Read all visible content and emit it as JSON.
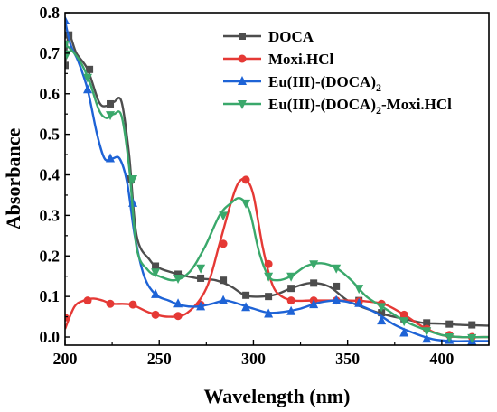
{
  "chart_data": {
    "type": "line",
    "xlabel": "Wavelength (nm)",
    "ylabel": "Absorbance",
    "xlim": [
      200,
      425
    ],
    "ylim": [
      -0.02,
      0.8
    ],
    "xticks": [
      200,
      250,
      300,
      350,
      400
    ],
    "yticks": [
      0.0,
      0.1,
      0.2,
      0.3,
      0.4,
      0.5,
      0.6,
      0.7,
      0.8
    ],
    "grid": false,
    "legend_position": "top-right",
    "series": [
      {
        "name": "DOCA",
        "legend_main": "DOCA",
        "legend_sub": "",
        "legend_tail": "",
        "color": "#4d4d4d",
        "marker": "square",
        "x": [
          200,
          202,
          206,
          212,
          218,
          222,
          226,
          230,
          234,
          238,
          245,
          250,
          260,
          270,
          280,
          288,
          296,
          305,
          312,
          320,
          330,
          340,
          350,
          360,
          370,
          380,
          390,
          400,
          410,
          425
        ],
        "y": [
          0.67,
          0.745,
          0.7,
          0.66,
          0.58,
          0.57,
          0.58,
          0.58,
          0.45,
          0.25,
          0.19,
          0.17,
          0.155,
          0.145,
          0.14,
          0.125,
          0.102,
          0.1,
          0.105,
          0.12,
          0.133,
          0.125,
          0.09,
          0.07,
          0.055,
          0.045,
          0.035,
          0.033,
          0.03,
          0.028
        ],
        "markers_x": [
          200,
          202,
          213,
          224,
          235,
          248,
          260,
          272,
          284,
          296,
          308,
          320,
          332,
          344,
          356,
          368,
          380,
          392,
          404,
          416
        ],
        "markers_y": [
          0.67,
          0.745,
          0.66,
          0.575,
          0.39,
          0.175,
          0.155,
          0.145,
          0.14,
          0.103,
          0.1,
          0.12,
          0.133,
          0.125,
          0.09,
          0.06,
          0.045,
          0.035,
          0.032,
          0.03
        ]
      },
      {
        "name": "Moxi.HCl",
        "legend_main": "Moxi.HCl",
        "legend_sub": "",
        "legend_tail": "",
        "color": "#e53935",
        "marker": "circle",
        "x": [
          200,
          205,
          210,
          215,
          220,
          225,
          235,
          245,
          255,
          265,
          275,
          282,
          288,
          292,
          296,
          300,
          305,
          310,
          315,
          322,
          330,
          340,
          350,
          360,
          370,
          380,
          390,
          400,
          410,
          425
        ],
        "y": [
          0.02,
          0.075,
          0.09,
          0.095,
          0.09,
          0.082,
          0.08,
          0.06,
          0.05,
          0.06,
          0.12,
          0.23,
          0.33,
          0.38,
          0.388,
          0.35,
          0.22,
          0.13,
          0.1,
          0.09,
          0.09,
          0.09,
          0.09,
          0.088,
          0.08,
          0.055,
          0.025,
          0.005,
          0.0,
          0.0
        ],
        "markers_x": [
          200,
          212,
          224,
          236,
          248,
          260,
          272,
          284,
          296,
          308,
          320,
          332,
          344,
          356,
          368,
          380,
          392,
          404,
          416
        ],
        "markers_y": [
          0.048,
          0.09,
          0.082,
          0.08,
          0.055,
          0.052,
          0.08,
          0.23,
          0.388,
          0.18,
          0.09,
          0.09,
          0.09,
          0.088,
          0.082,
          0.055,
          0.02,
          0.005,
          0.0
        ]
      },
      {
        "name": "Eu(III)-(DOCA)2",
        "legend_main": "Eu(III)-(DOCA)",
        "legend_sub": "2",
        "legend_tail": "",
        "color": "#1e63d6",
        "marker": "triangle-up",
        "x": [
          200,
          203,
          207,
          212,
          217,
          221,
          225,
          229,
          233,
          237,
          242,
          248,
          255,
          262,
          270,
          278,
          285,
          292,
          300,
          308,
          316,
          325,
          335,
          345,
          355,
          365,
          375,
          385,
          395,
          405,
          415,
          425
        ],
        "y": [
          0.78,
          0.72,
          0.68,
          0.61,
          0.5,
          0.44,
          0.44,
          0.44,
          0.38,
          0.25,
          0.15,
          0.105,
          0.09,
          0.078,
          0.075,
          0.082,
          0.09,
          0.082,
          0.07,
          0.06,
          0.062,
          0.07,
          0.085,
          0.09,
          0.08,
          0.06,
          0.03,
          0.01,
          -0.005,
          -0.01,
          -0.01,
          -0.01
        ],
        "markers_x": [
          200,
          212,
          224,
          236,
          248,
          260,
          272,
          284,
          296,
          308,
          320,
          332,
          344,
          356,
          368,
          380,
          392,
          404,
          416
        ],
        "markers_y": [
          0.78,
          0.61,
          0.44,
          0.33,
          0.105,
          0.082,
          0.075,
          0.09,
          0.073,
          0.057,
          0.063,
          0.08,
          0.09,
          0.083,
          0.04,
          0.01,
          -0.005,
          -0.008,
          -0.01
        ]
      },
      {
        "name": "Eu(III)-(DOCA)2-Moxi.HCl",
        "legend_main": "Eu(III)-(DOCA)",
        "legend_sub": "2",
        "legend_tail": "-Moxi.HCl",
        "color": "#3aa86b",
        "marker": "triangle-down",
        "x": [
          200,
          203,
          208,
          213,
          218,
          222,
          226,
          230,
          234,
          238,
          244,
          250,
          258,
          266,
          274,
          282,
          288,
          293,
          298,
          303,
          308,
          313,
          320,
          328,
          336,
          344,
          352,
          360,
          370,
          380,
          390,
          400,
          410,
          425
        ],
        "y": [
          0.72,
          0.71,
          0.68,
          0.63,
          0.56,
          0.54,
          0.55,
          0.545,
          0.42,
          0.22,
          0.165,
          0.15,
          0.14,
          0.16,
          0.22,
          0.3,
          0.33,
          0.342,
          0.31,
          0.21,
          0.15,
          0.14,
          0.15,
          0.175,
          0.182,
          0.17,
          0.14,
          0.1,
          0.07,
          0.04,
          0.02,
          0.005,
          0.0,
          0.0
        ],
        "markers_x": [
          200,
          201,
          212,
          224,
          236,
          248,
          260,
          272,
          284,
          296,
          308,
          320,
          332,
          344,
          356,
          368,
          380,
          392,
          404,
          416
        ],
        "markers_y": [
          0.722,
          0.698,
          0.64,
          0.548,
          0.39,
          0.16,
          0.145,
          0.17,
          0.3,
          0.33,
          0.15,
          0.15,
          0.18,
          0.17,
          0.12,
          0.075,
          0.04,
          0.015,
          0.0,
          -0.002
        ]
      }
    ]
  }
}
